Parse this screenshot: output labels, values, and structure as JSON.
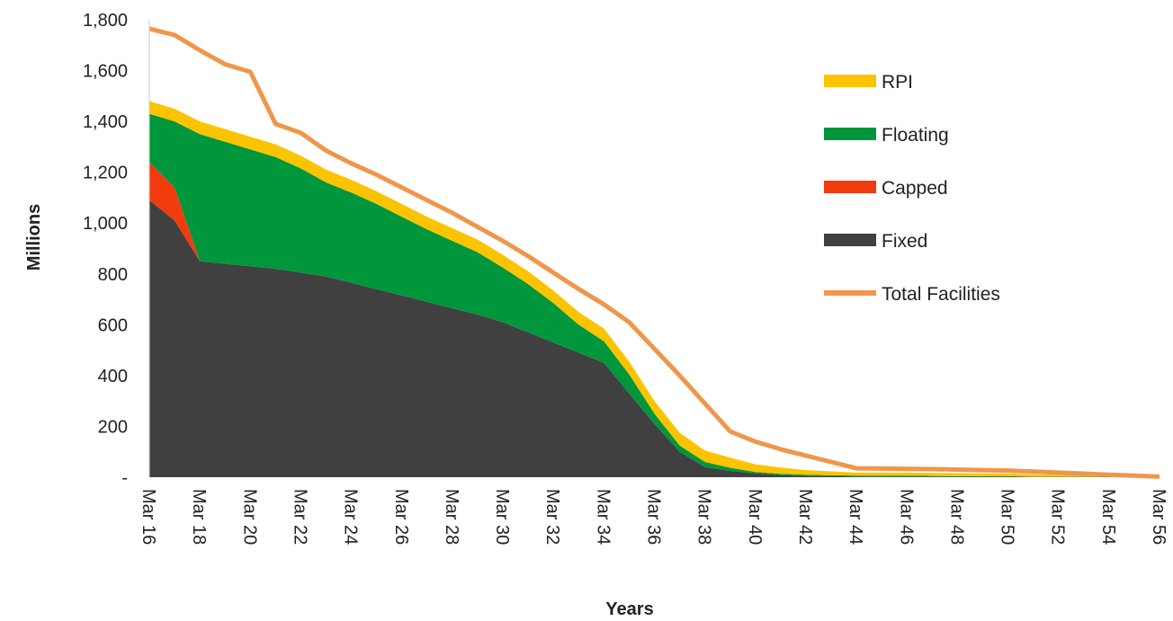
{
  "chart_data": {
    "type": "area",
    "stacked": true,
    "xlabel": "Years",
    "ylabel": "Millions",
    "ylim": [
      0,
      1800
    ],
    "y_ticks": [
      0,
      200,
      400,
      600,
      800,
      1000,
      1200,
      1400,
      1600,
      1800
    ],
    "y_tick_labels": [
      "-",
      "200",
      "400",
      "600",
      "800",
      "1,000",
      "1,200",
      "1,400",
      "1,600",
      "1,800"
    ],
    "x_tick_labels": [
      "Mar 16",
      "Mar 18",
      "Mar 20",
      "Mar 22",
      "Mar 24",
      "Mar 26",
      "Mar 28",
      "Mar 30",
      "Mar 32",
      "Mar 34",
      "Mar 36",
      "Mar 38",
      "Mar 40",
      "Mar 42",
      "Mar 44",
      "Mar 46",
      "Mar 48",
      "Mar 50",
      "Mar 52",
      "Mar 54",
      "Mar 56"
    ],
    "x": [
      "Mar 16",
      "Mar 17",
      "Mar 18",
      "Mar 19",
      "Mar 20",
      "Mar 21",
      "Mar 22",
      "Mar 23",
      "Mar 24",
      "Mar 25",
      "Mar 26",
      "Mar 27",
      "Mar 28",
      "Mar 29",
      "Mar 30",
      "Mar 31",
      "Mar 32",
      "Mar 33",
      "Mar 34",
      "Mar 35",
      "Mar 36",
      "Mar 37",
      "Mar 38",
      "Mar 39",
      "Mar 40",
      "Mar 41",
      "Mar 42",
      "Mar 43",
      "Mar 44",
      "Mar 45",
      "Mar 46",
      "Mar 47",
      "Mar 48",
      "Mar 49",
      "Mar 50",
      "Mar 51",
      "Mar 52",
      "Mar 53",
      "Mar 54",
      "Mar 55",
      "Mar 56"
    ],
    "series": [
      {
        "name": "Fixed",
        "color": "#404040",
        "values": [
          1090,
          1010,
          850,
          840,
          830,
          820,
          805,
          790,
          765,
          740,
          715,
          690,
          665,
          640,
          610,
          570,
          530,
          490,
          450,
          330,
          210,
          100,
          40,
          25,
          15,
          8,
          5,
          4,
          3,
          3,
          3,
          3,
          2,
          2,
          2,
          1,
          1,
          1,
          1,
          1,
          0
        ]
      },
      {
        "name": "Capped",
        "color": "#f03c0f",
        "values": [
          150,
          130,
          0,
          0,
          0,
          0,
          0,
          0,
          0,
          0,
          0,
          0,
          0,
          0,
          0,
          0,
          0,
          0,
          0,
          0,
          0,
          0,
          0,
          0,
          0,
          0,
          0,
          0,
          0,
          0,
          0,
          0,
          0,
          0,
          0,
          0,
          0,
          0,
          0,
          0,
          0
        ]
      },
      {
        "name": "Floating",
        "color": "#00963c",
        "values": [
          190,
          260,
          500,
          480,
          460,
          440,
          410,
          370,
          355,
          335,
          310,
          285,
          265,
          245,
          215,
          190,
          155,
          110,
          85,
          75,
          40,
          25,
          20,
          12,
          6,
          5,
          5,
          4,
          3,
          3,
          3,
          2,
          2,
          2,
          2,
          1,
          1,
          1,
          1,
          1,
          0
        ]
      },
      {
        "name": "RPI",
        "color": "#fcc300",
        "values": [
          50,
          50,
          50,
          50,
          50,
          50,
          50,
          50,
          50,
          50,
          50,
          50,
          50,
          50,
          50,
          50,
          50,
          50,
          50,
          50,
          50,
          50,
          45,
          40,
          30,
          25,
          18,
          15,
          12,
          12,
          12,
          12,
          12,
          11,
          10,
          9,
          8,
          7,
          5,
          3,
          2
        ]
      },
      {
        "name": "Total Facilities",
        "color": "#f0964b",
        "type": "line",
        "values": [
          1765,
          1740,
          1680,
          1625,
          1595,
          1390,
          1355,
          1285,
          1235,
          1190,
          1140,
          1090,
          1040,
          985,
          930,
          870,
          805,
          740,
          680,
          610,
          505,
          400,
          290,
          180,
          140,
          110,
          85,
          60,
          35,
          34,
          33,
          32,
          30,
          28,
          26,
          22,
          18,
          14,
          10,
          6,
          2
        ]
      }
    ],
    "legend": {
      "placement": "right",
      "items": [
        {
          "label": "RPI",
          "color": "#fcc300"
        },
        {
          "label": "Floating",
          "color": "#00963c"
        },
        {
          "label": "Capped",
          "color": "#f03c0f"
        },
        {
          "label": "Fixed",
          "color": "#404040"
        },
        {
          "label": "Total Facilities",
          "color": "#f0964b"
        }
      ]
    },
    "grid": false
  }
}
